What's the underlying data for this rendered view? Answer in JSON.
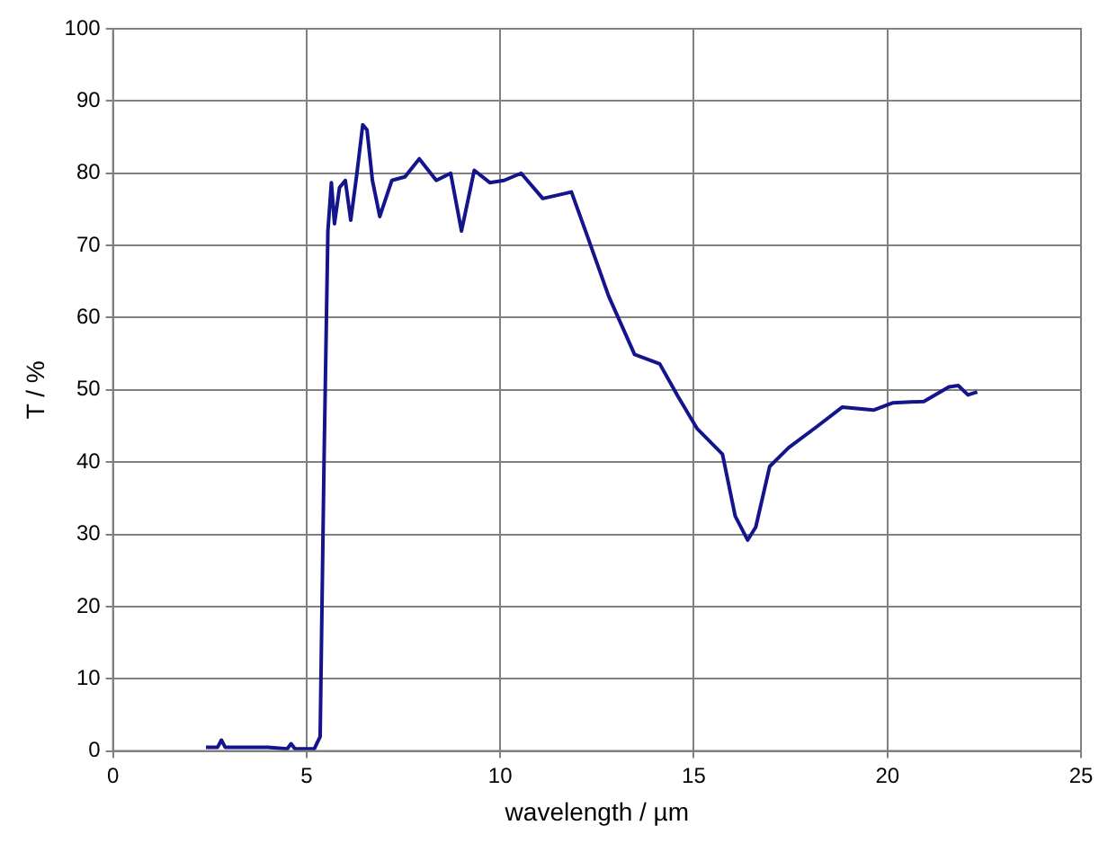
{
  "chart_data": {
    "type": "line",
    "xlabel": "wavelength / µm",
    "ylabel": "T / %",
    "xlim": [
      0,
      25
    ],
    "xticks": [
      0,
      5,
      10,
      15,
      20,
      25
    ],
    "ylim": [
      0,
      100
    ],
    "yticks": [
      0,
      10,
      20,
      30,
      40,
      50,
      60,
      70,
      80,
      90,
      100
    ],
    "grid": true,
    "legend": false,
    "marker": "none",
    "line_style": "solid",
    "series": [
      {
        "color": "#14148c",
        "x": [
          2.4,
          2.7,
          2.8,
          2.9,
          3.3,
          4.0,
          4.5,
          4.6,
          4.7,
          5.2,
          5.35,
          5.45,
          5.55,
          5.64,
          5.72,
          5.85,
          6.0,
          6.14,
          6.3,
          6.45,
          6.56,
          6.7,
          6.89,
          7.2,
          7.54,
          7.91,
          8.35,
          8.72,
          9.0,
          9.33,
          9.73,
          10.1,
          10.54,
          11.1,
          11.84,
          12.25,
          12.8,
          13.47,
          14.12,
          14.6,
          15.09,
          15.74,
          16.07,
          16.39,
          16.6,
          16.96,
          17.45,
          18.2,
          18.83,
          19.64,
          20.13,
          20.94,
          21.59,
          21.83,
          22.08,
          22.32
        ],
        "values": [
          0.5,
          0.5,
          1.5,
          0.5,
          0.5,
          0.5,
          0.3,
          1,
          0.3,
          0.3,
          2,
          40,
          72,
          78.7,
          73,
          78,
          79,
          73.5,
          80,
          86.7,
          86,
          79,
          74,
          79,
          79.5,
          82,
          79,
          80,
          72,
          80.4,
          78.7,
          79,
          80,
          76.5,
          77.4,
          71.3,
          63,
          54.9,
          53.6,
          49,
          44.6,
          41.1,
          32.5,
          29.2,
          31,
          39.4,
          42,
          45,
          47.6,
          47.2,
          48.2,
          48.4,
          50.4,
          50.6,
          49.3,
          49.7
        ]
      }
    ]
  }
}
